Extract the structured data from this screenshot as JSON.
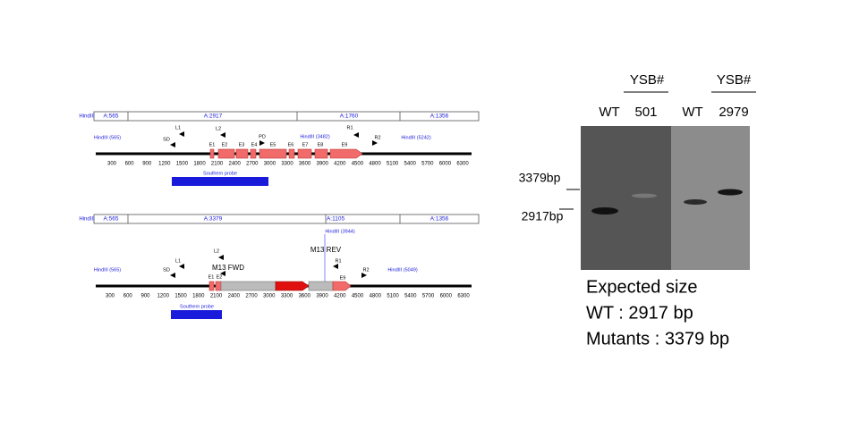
{
  "maps": [
    {
      "hindiii": "HindIII",
      "segments": [
        "A:565",
        "A:2917",
        "A:1760",
        "A:1356"
      ],
      "labels": [
        "HindIII (565)",
        "SD",
        "L1",
        "L2",
        "E1",
        "E2",
        "E3",
        "E4",
        "PD",
        "E5",
        "E6",
        "E7",
        "E8",
        "E9",
        "HindIII (3482)",
        "R1",
        "R2",
        "HindIII (5242)"
      ],
      "axis": [
        300,
        600,
        900,
        1200,
        1500,
        1800,
        2100,
        2400,
        2700,
        3000,
        3300,
        3600,
        3900,
        4200,
        4500,
        4800,
        5100,
        5400,
        5700,
        6000,
        6300
      ],
      "probe": "Southern probe"
    },
    {
      "hindiii": "HindIII",
      "segments": [
        "A:565",
        "A:3379",
        "A:1105",
        "A:1356"
      ],
      "labels": [
        "HindIII (3944)",
        "M13 REV",
        "HindIII (565)",
        "SD",
        "L1",
        "L2",
        "M13 FWD",
        "R1",
        "R2",
        "HindIII (5049)",
        "E1",
        "E2",
        "E9"
      ],
      "axis": [
        300,
        600,
        900,
        1200,
        1500,
        1800,
        2100,
        2400,
        2700,
        3000,
        3300,
        3600,
        3900,
        4200,
        4500,
        4800,
        5100,
        5400,
        5700,
        6000,
        6300
      ],
      "probe": "Southern probe"
    }
  ],
  "blot": {
    "groups": [
      "YSB#",
      "YSB#"
    ],
    "lanes": [
      "WT",
      "501",
      "WT",
      "2979"
    ],
    "markers": [
      "3379bp",
      "2917bp"
    ],
    "notes": [
      "Expected size",
      "WT : 2917 bp",
      "Mutants : 3379 bp"
    ]
  }
}
